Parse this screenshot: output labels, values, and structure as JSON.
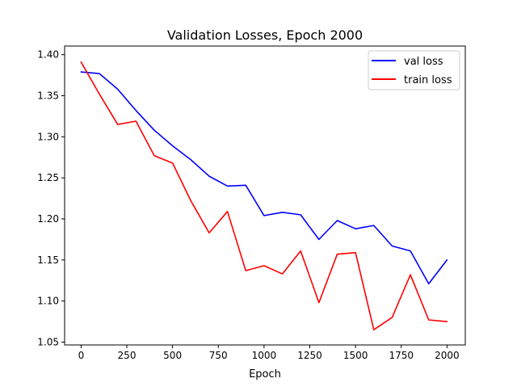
{
  "chart_data": {
    "type": "line",
    "title": "Validation Losses, Epoch 2000",
    "xlabel": "Epoch",
    "ylabel": "",
    "xlim": [
      -90,
      2100
    ],
    "ylim": [
      1.0465,
      1.4105
    ],
    "x_ticks": [
      0,
      250,
      500,
      750,
      1000,
      1250,
      1500,
      1750,
      2000
    ],
    "x_tick_labels": [
      "0",
      "250",
      "500",
      "750",
      "1000",
      "1250",
      "1500",
      "1750",
      "2000"
    ],
    "y_ticks": [
      1.05,
      1.1,
      1.15,
      1.2,
      1.25,
      1.3,
      1.35,
      1.4
    ],
    "y_tick_labels": [
      "1.05",
      "1.10",
      "1.15",
      "1.20",
      "1.25",
      "1.30",
      "1.35",
      "1.40"
    ],
    "grid": false,
    "legend_position": "top-right",
    "x": [
      0,
      100,
      200,
      300,
      400,
      500,
      600,
      700,
      800,
      900,
      1000,
      1100,
      1200,
      1300,
      1400,
      1500,
      1600,
      1700,
      1800,
      1900,
      2000
    ],
    "series": [
      {
        "name": "val loss",
        "color": "#0000ff",
        "values": [
          1.379,
          1.377,
          1.358,
          1.332,
          1.308,
          1.289,
          1.272,
          1.252,
          1.24,
          1.241,
          1.204,
          1.208,
          1.205,
          1.175,
          1.198,
          1.188,
          1.192,
          1.167,
          1.161,
          1.121,
          1.15
        ]
      },
      {
        "name": "train loss",
        "color": "#ff0000",
        "values": [
          1.391,
          1.352,
          1.315,
          1.319,
          1.277,
          1.268,
          1.222,
          1.183,
          1.209,
          1.137,
          1.143,
          1.133,
          1.161,
          1.098,
          1.157,
          1.159,
          1.065,
          1.08,
          1.132,
          1.077,
          1.075
        ]
      }
    ]
  }
}
